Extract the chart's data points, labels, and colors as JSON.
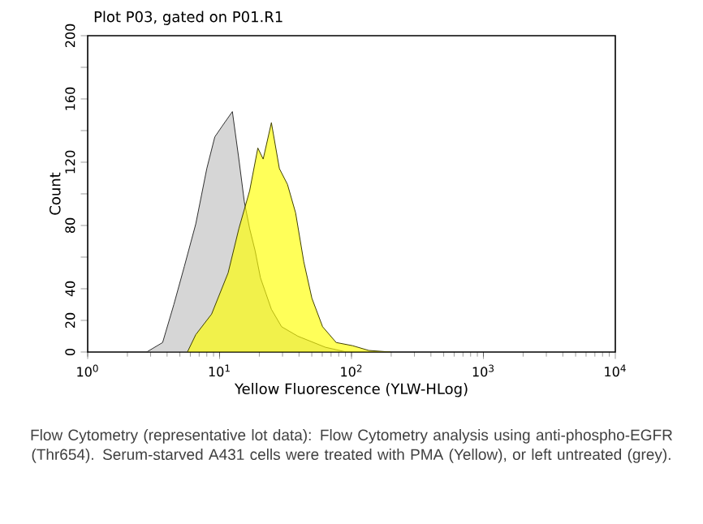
{
  "chart_data": {
    "type": "area",
    "title": "Plot P03, gated on P01.R1",
    "xlabel": "Yellow Fluorescence (YLW-HLog)",
    "ylabel": "Count",
    "log": "x",
    "xlim": [
      1,
      10000
    ],
    "xticks": [
      {
        "value": 1,
        "label": "10$^{0}$"
      },
      {
        "value": 10,
        "label": "10$^{1}$"
      },
      {
        "value": 100,
        "label": "10$^{2}$"
      },
      {
        "value": 1000,
        "label": "10$^{3}$"
      },
      {
        "value": 10000,
        "label": "10$^{4}$"
      }
    ],
    "ylim": [
      0,
      200
    ],
    "yticks": [
      0,
      20,
      40,
      {
        "value": 60,
        "label": null
      },
      80,
      {
        "value": 100,
        "label": null
      },
      120,
      {
        "value": 140,
        "label": null
      },
      160,
      {
        "value": 180,
        "label": null
      },
      200
    ],
    "series": [
      {
        "color": "#c0c0c0",
        "x": [
          2.8,
          3.7,
          4.5,
          5.4,
          6.6,
          8.0,
          9.2,
          10.5,
          12.5,
          14,
          15.4,
          16.9,
          18.6,
          20.4,
          24.7,
          29.5,
          39.2,
          63.4,
          91.6
        ],
        "values": [
          0,
          6,
          30,
          54,
          81,
          116,
          136,
          143,
          152,
          122,
          95,
          78,
          64,
          47,
          27,
          16,
          10,
          3,
          0
        ]
      },
      {
        "color": "#ffff00",
        "x": [
          5.7,
          6.6,
          8.7,
          11.6,
          14,
          16.9,
          19.5,
          21.4,
          24.7,
          28.4,
          32.7,
          37.7,
          43.5,
          50.1,
          60.4,
          76.6,
          102,
          135,
          197
        ],
        "values": [
          0,
          11,
          24,
          50,
          78,
          102,
          129,
          122,
          145,
          116,
          106,
          88,
          57,
          34,
          16,
          6,
          4,
          1,
          0
        ]
      }
    ],
    "annotations": [
      "Flow Cytometry (representative lot data): Flow Cytometry analysis using anti-phospho-EGFR (Thr654). Serum-starved A431 cells were treated with PMA (Yellow), or left untreated (grey)."
    ]
  }
}
